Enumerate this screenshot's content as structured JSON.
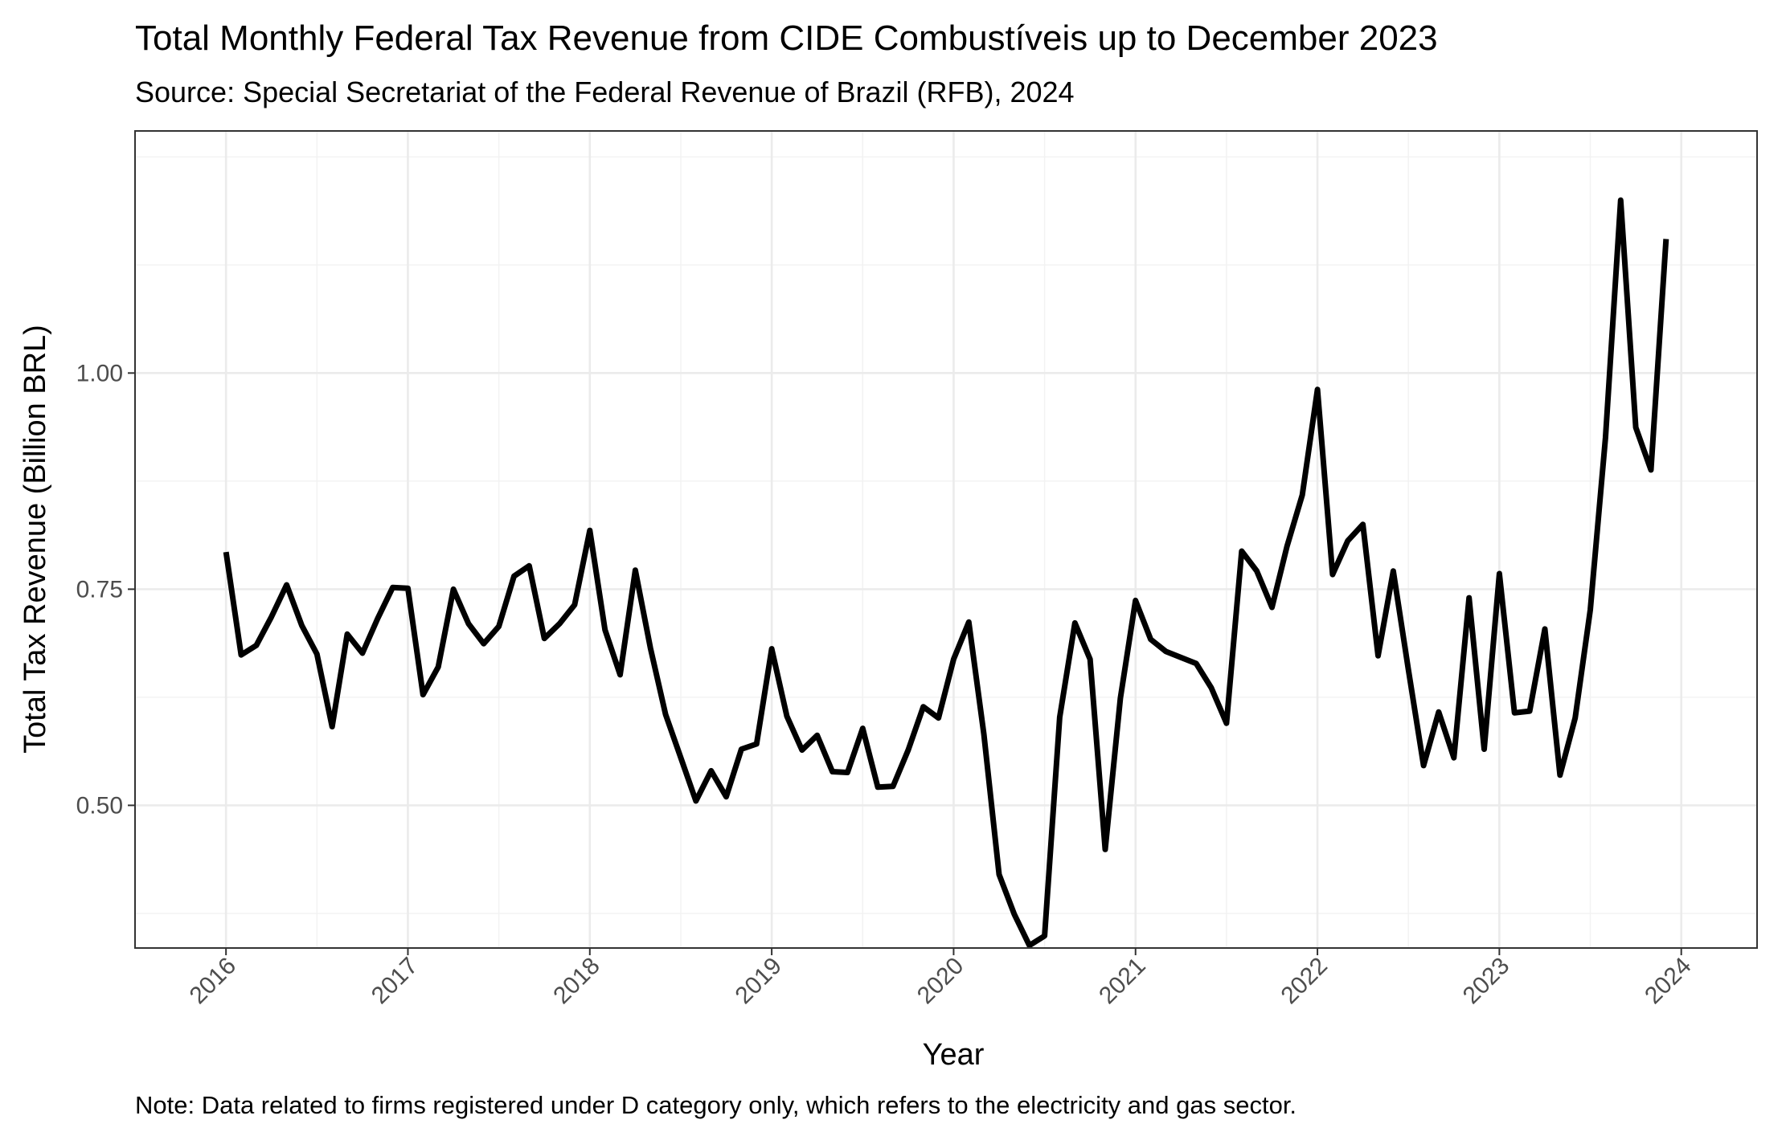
{
  "chart_data": {
    "type": "line",
    "title": "Total Monthly Federal Tax Revenue from CIDE Combustíveis up to December 2023",
    "subtitle": "Source: Special Secretariat of the Federal Revenue of Brazil (RFB), 2024",
    "xlabel": "Year",
    "ylabel": "Total Tax Revenue (Billion BRL)",
    "caption": "Note: Data related to firms registered under D category only, which refers to the electricity and gas sector.",
    "x_ticks": [
      "2016",
      "2017",
      "2018",
      "2019",
      "2020",
      "2021",
      "2022",
      "2023",
      "2024"
    ],
    "y_ticks": [
      "0.50",
      "0.75",
      "1.00"
    ],
    "xlim": [
      "2015-07-01",
      "2024-06-01"
    ],
    "ylim": [
      0.335,
      1.28
    ],
    "grid": true,
    "line_color": "#000000",
    "series": [
      {
        "x": [
          "2016-01",
          "2016-02",
          "2016-03",
          "2016-04",
          "2016-05",
          "2016-06",
          "2016-07",
          "2016-08",
          "2016-09",
          "2016-10",
          "2016-11",
          "2016-12",
          "2017-01",
          "2017-02",
          "2017-03",
          "2017-04",
          "2017-05",
          "2017-06",
          "2017-07",
          "2017-08",
          "2017-09",
          "2017-10",
          "2017-11",
          "2017-12",
          "2018-01",
          "2018-02",
          "2018-03",
          "2018-04",
          "2018-05",
          "2018-06",
          "2018-07",
          "2018-08",
          "2018-09",
          "2018-10",
          "2018-11",
          "2018-12",
          "2019-01",
          "2019-02",
          "2019-03",
          "2019-04",
          "2019-05",
          "2019-06",
          "2019-07",
          "2019-08",
          "2019-09",
          "2019-10",
          "2019-11",
          "2019-12",
          "2020-01",
          "2020-02",
          "2020-03",
          "2020-04",
          "2020-05",
          "2020-06",
          "2020-07",
          "2020-08",
          "2020-09",
          "2020-10",
          "2020-11",
          "2020-12",
          "2021-01",
          "2021-02",
          "2021-03",
          "2021-04",
          "2021-05",
          "2021-06",
          "2021-07",
          "2021-08",
          "2021-09",
          "2021-10",
          "2021-11",
          "2021-12",
          "2022-01",
          "2022-02",
          "2022-03",
          "2022-04",
          "2022-05",
          "2022-06",
          "2022-07",
          "2022-08",
          "2022-09",
          "2022-10",
          "2022-11",
          "2022-12",
          "2023-01",
          "2023-02",
          "2023-03",
          "2023-04",
          "2023-05",
          "2023-06",
          "2023-07",
          "2023-08",
          "2023-09",
          "2023-10",
          "2023-11",
          "2023-12"
        ],
        "values": [
          0.793,
          0.674,
          0.685,
          0.718,
          0.755,
          0.708,
          0.675,
          0.591,
          0.698,
          0.676,
          0.716,
          0.752,
          0.751,
          0.628,
          0.66,
          0.75,
          0.71,
          0.687,
          0.707,
          0.765,
          0.777,
          0.693,
          0.71,
          0.732,
          0.818,
          0.703,
          0.651,
          0.772,
          0.682,
          0.605,
          0.555,
          0.505,
          0.54,
          0.51,
          0.565,
          0.571,
          0.681,
          0.603,
          0.564,
          0.581,
          0.539,
          0.538,
          0.589,
          0.521,
          0.522,
          0.564,
          0.614,
          0.601,
          0.669,
          0.712,
          0.582,
          0.42,
          0.374,
          0.338,
          0.349,
          0.602,
          0.711,
          0.669,
          0.449,
          0.624,
          0.737,
          0.692,
          0.678,
          0.671,
          0.664,
          0.636,
          0.595,
          0.794,
          0.771,
          0.729,
          0.8,
          0.859,
          0.981,
          0.767,
          0.806,
          0.825,
          0.673,
          0.771,
          0.657,
          0.546,
          0.608,
          0.555,
          0.74,
          0.565,
          0.768,
          0.607,
          0.609,
          0.704,
          0.535,
          0.601,
          0.726,
          0.925,
          1.2,
          0.937,
          0.888,
          1.155
        ]
      }
    ]
  }
}
